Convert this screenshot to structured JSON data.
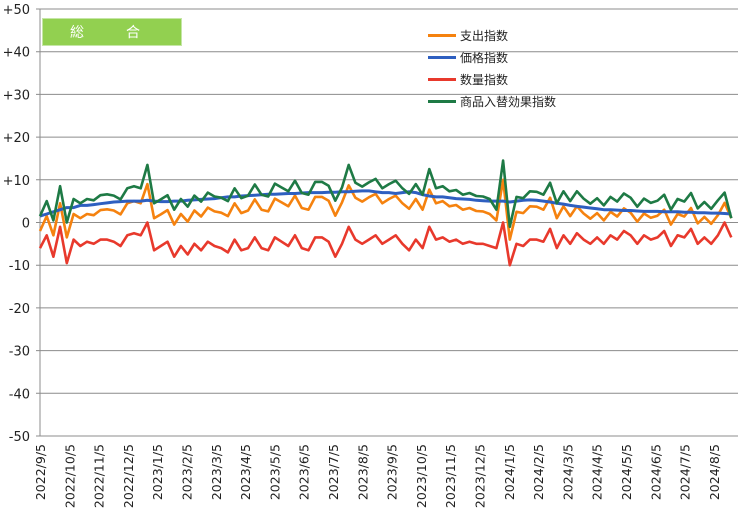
{
  "chart_data": {
    "type": "line",
    "title": "総　合",
    "xlabel": "",
    "ylabel": "",
    "ylim": [
      -50,
      50
    ],
    "yticks": [
      "+50",
      "+40",
      "+30",
      "+20",
      "+10",
      "0",
      "-10",
      "-20",
      "-30",
      "-40",
      "-50"
    ],
    "ytick_values": [
      50,
      40,
      30,
      20,
      10,
      0,
      -10,
      -20,
      -30,
      -40,
      -50
    ],
    "grid": true,
    "legend_position": "top-right",
    "x_tick_labels": [
      "2022/9/5",
      "2022/10/5",
      "2022/11/5",
      "2022/12/5",
      "2023/1/5",
      "2023/2/5",
      "2023/3/5",
      "2023/4/5",
      "2023/5/5",
      "2023/6/5",
      "2023/7/5",
      "2023/8/5",
      "2023/9/5",
      "2023/10/5",
      "2023/11/5",
      "2023/12/5",
      "2024/1/5",
      "2024/2/5",
      "2024/3/5",
      "2024/4/5",
      "2024/5/5",
      "2024/6/5",
      "2024/7/5",
      "2024/8/5"
    ],
    "x_frequency": "weekly",
    "series": [
      {
        "name": "支出指数",
        "color": "#f5820f",
        "values": [
          -2,
          1.5,
          -3,
          4.5,
          -3.5,
          2,
          1,
          2,
          1.7,
          2.9,
          3.1,
          2.8,
          1.9,
          4.5,
          5,
          4.5,
          9,
          1,
          1.9,
          2.9,
          -0.5,
          2,
          0.2,
          2.8,
          1.4,
          3.5,
          2.6,
          2.3,
          1.5,
          4.5,
          2.2,
          2.8,
          5.4,
          3,
          2.6,
          5.6,
          4.7,
          3.8,
          6.3,
          3.4,
          3,
          6,
          6,
          5.1,
          1.6,
          4.7,
          8.7,
          5.8,
          4.9,
          5.9,
          6.7,
          4.5,
          5.5,
          6.3,
          4.5,
          3.2,
          5.5,
          3,
          7.7,
          4.5,
          5,
          3.8,
          4.1,
          3,
          3.4,
          2.7,
          2.6,
          2,
          0.5,
          10,
          -4,
          2.5,
          2.2,
          3.8,
          3.7,
          3,
          5.8,
          1,
          3.8,
          1.5,
          3.8,
          2.1,
          0.9,
          2.2,
          0.5,
          2.5,
          1.4,
          3.3,
          2.3,
          0.2,
          2.1,
          1.1,
          1.6,
          3,
          -0.5,
          2,
          1.4,
          3.4,
          -0.2,
          1.3,
          -0.3,
          1.7,
          4.6,
          1
        ]
      },
      {
        "name": "価格指数",
        "color": "#2e5fc0",
        "values": [
          1.5,
          2,
          2.5,
          3,
          3.5,
          3.5,
          4,
          4,
          4.2,
          4.4,
          4.6,
          4.8,
          4.9,
          5,
          5,
          5,
          5.2,
          5,
          4.9,
          4.9,
          5,
          5,
          5.2,
          5.3,
          5.4,
          5.5,
          5.6,
          5.8,
          6,
          6,
          6.2,
          6.3,
          6.4,
          6.5,
          6.6,
          6.6,
          6.7,
          6.8,
          6.8,
          6.9,
          7,
          7,
          7,
          7.1,
          7.1,
          7.2,
          7.2,
          7.3,
          7.4,
          7.4,
          7.2,
          7,
          7,
          6.8,
          7,
          7.2,
          7,
          6.5,
          6.2,
          6,
          6,
          5.8,
          5.6,
          5.5,
          5.4,
          5.2,
          5.1,
          5,
          5,
          5,
          4.8,
          5,
          5.2,
          5.3,
          5.2,
          5,
          4.8,
          4.5,
          4.3,
          4,
          3.8,
          3.6,
          3.4,
          3.2,
          3,
          3,
          2.9,
          2.8,
          2.8,
          2.7,
          2.6,
          2.6,
          2.6,
          2.5,
          2.5,
          2.5,
          2.4,
          2.4,
          2.3,
          2.3,
          2.2,
          2.2,
          2.1,
          2
        ]
      },
      {
        "name": "数量指数",
        "color": "#e8392c",
        "values": [
          -6,
          -3,
          -8,
          -1,
          -9.5,
          -4,
          -5.5,
          -4.5,
          -5,
          -4,
          -4,
          -4.5,
          -5.5,
          -3,
          -2.5,
          -3,
          0,
          -6.5,
          -5.5,
          -4.5,
          -8,
          -5.5,
          -7.5,
          -5,
          -6.5,
          -4.5,
          -5.5,
          -6,
          -7,
          -4,
          -6.5,
          -6,
          -3.5,
          -6,
          -6.5,
          -3.5,
          -4.5,
          -5.5,
          -3,
          -6,
          -6.5,
          -3.5,
          -3.5,
          -4.5,
          -8,
          -5,
          -1,
          -4,
          -5,
          -4,
          -3,
          -5,
          -4,
          -3,
          -5,
          -6.5,
          -4,
          -6,
          -1,
          -4,
          -3.5,
          -4.5,
          -4,
          -5,
          -4.5,
          -5,
          -5,
          -5.5,
          -6,
          0,
          -10,
          -5,
          -5.5,
          -4,
          -4,
          -4.5,
          -1.5,
          -6,
          -3,
          -5,
          -2.5,
          -4,
          -5,
          -3.5,
          -5,
          -3,
          -4,
          -2,
          -3,
          -5,
          -3,
          -4,
          -3.5,
          -2,
          -5.5,
          -3,
          -3.5,
          -1.5,
          -5,
          -3.5,
          -5,
          -3,
          0,
          -3.5
        ]
      },
      {
        "name": "商品入替効果指数",
        "color": "#1e7a45",
        "values": [
          1.5,
          5,
          0.5,
          8.5,
          0,
          5.5,
          4.5,
          5.5,
          5.2,
          6.4,
          6.6,
          6.3,
          5.4,
          8,
          8.5,
          8,
          13.5,
          4.5,
          5.4,
          6.4,
          3,
          5.5,
          3.7,
          6.3,
          4.9,
          7,
          6.1,
          5.8,
          5,
          8,
          5.7,
          6.3,
          8.9,
          6.5,
          6.1,
          9.1,
          8.2,
          7.3,
          9.8,
          6.9,
          6.5,
          9.5,
          9.5,
          8.6,
          5.1,
          8.2,
          13.5,
          9.3,
          8.4,
          9.4,
          10.2,
          8,
          9,
          9.8,
          8,
          6.7,
          9,
          6.5,
          12.5,
          8,
          8.5,
          7.3,
          7.6,
          6.5,
          6.9,
          6.2,
          6.1,
          5.5,
          3,
          14.5,
          -1,
          6,
          5.7,
          7.3,
          7.2,
          6.5,
          9.3,
          4.5,
          7.3,
          5,
          7.3,
          5.6,
          4.4,
          5.7,
          4,
          6,
          4.9,
          6.8,
          5.8,
          3.7,
          5.6,
          4.6,
          5.1,
          6.5,
          3,
          5.5,
          4.9,
          6.9,
          3.3,
          4.8,
          3.2,
          5.2,
          7,
          1
        ]
      }
    ]
  }
}
